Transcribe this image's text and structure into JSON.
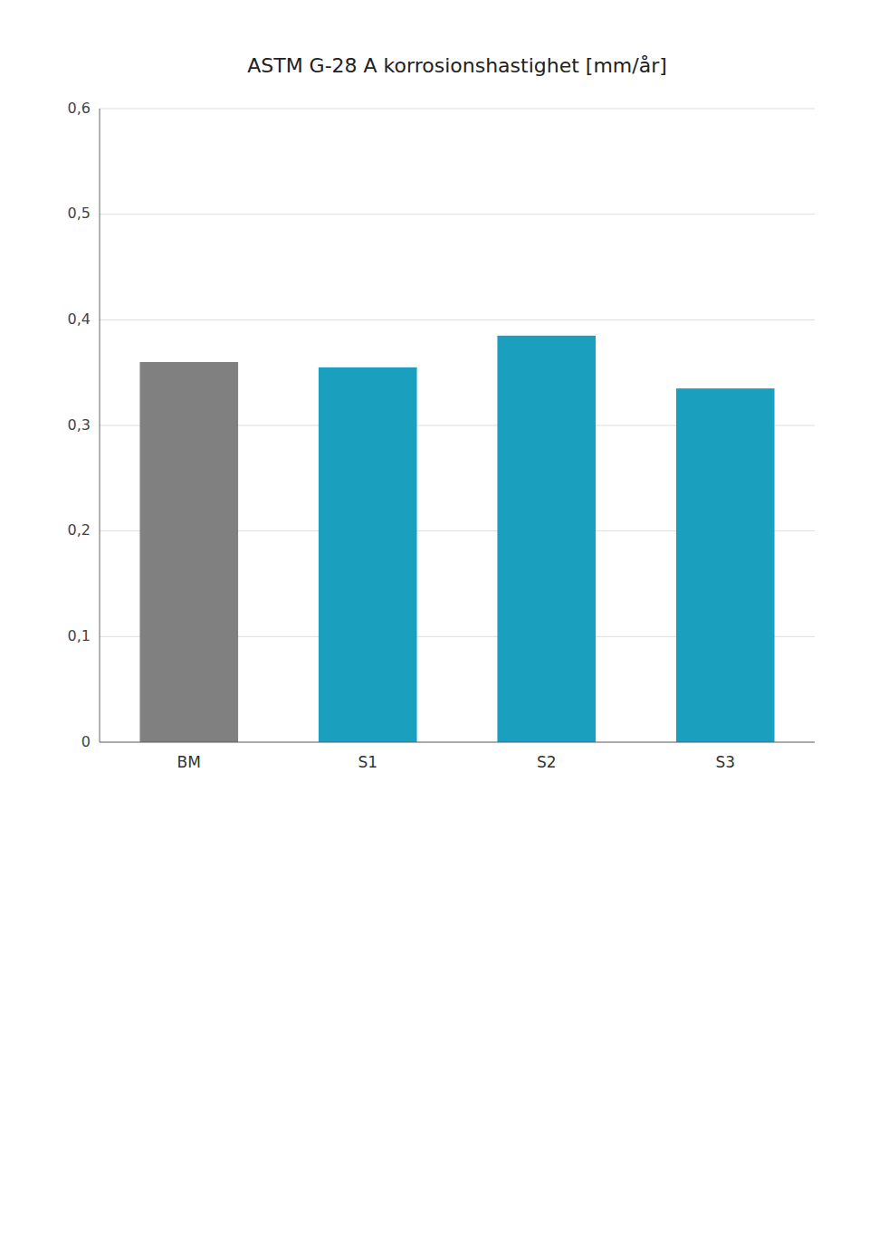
{
  "chart_data": {
    "type": "bar",
    "title": "ASTM G-28 A korrosionshastighet [mm/år]",
    "categories": [
      "BM",
      "S1",
      "S2",
      "S3"
    ],
    "values": [
      0.36,
      0.355,
      0.385,
      0.335
    ],
    "colors": [
      "#808080",
      "#1b9fbe",
      "#1b9fbe",
      "#1b9fbe"
    ],
    "ylim": [
      0,
      0.6
    ],
    "yticks": [
      0,
      {
        "value": 0.1,
        "label": "0,1"
      },
      {
        "value": 0.2,
        "label": "0,2"
      },
      {
        "value": 0.3,
        "label": "0,3"
      },
      {
        "value": 0.4,
        "label": "0,4"
      },
      {
        "value": 0.5,
        "label": "0,5"
      },
      {
        "value": 0.6,
        "label": "0,6"
      }
    ],
    "grid": true
  }
}
